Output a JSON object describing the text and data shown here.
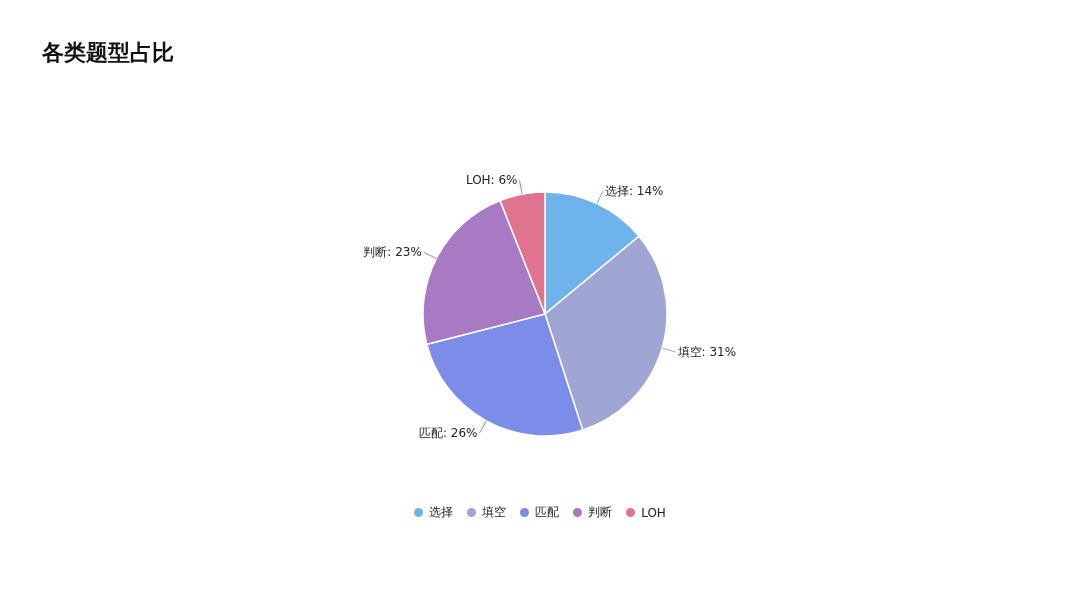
{
  "chart_data": {
    "type": "pie",
    "title": "各类题型占比",
    "categories": [
      "选择",
      "填空",
      "匹配",
      "判断",
      "LOH"
    ],
    "values": [
      14,
      31,
      26,
      23,
      6
    ],
    "value_labels": [
      "选择: 14%",
      "填空: 31%",
      "匹配: 26%",
      "判断: 23%",
      "LOH: 6%"
    ],
    "colors": [
      "#6fb3ec",
      "#a0a6d4",
      "#7b8de8",
      "#a97ac4",
      "#e07490"
    ],
    "legend": "bottom"
  }
}
